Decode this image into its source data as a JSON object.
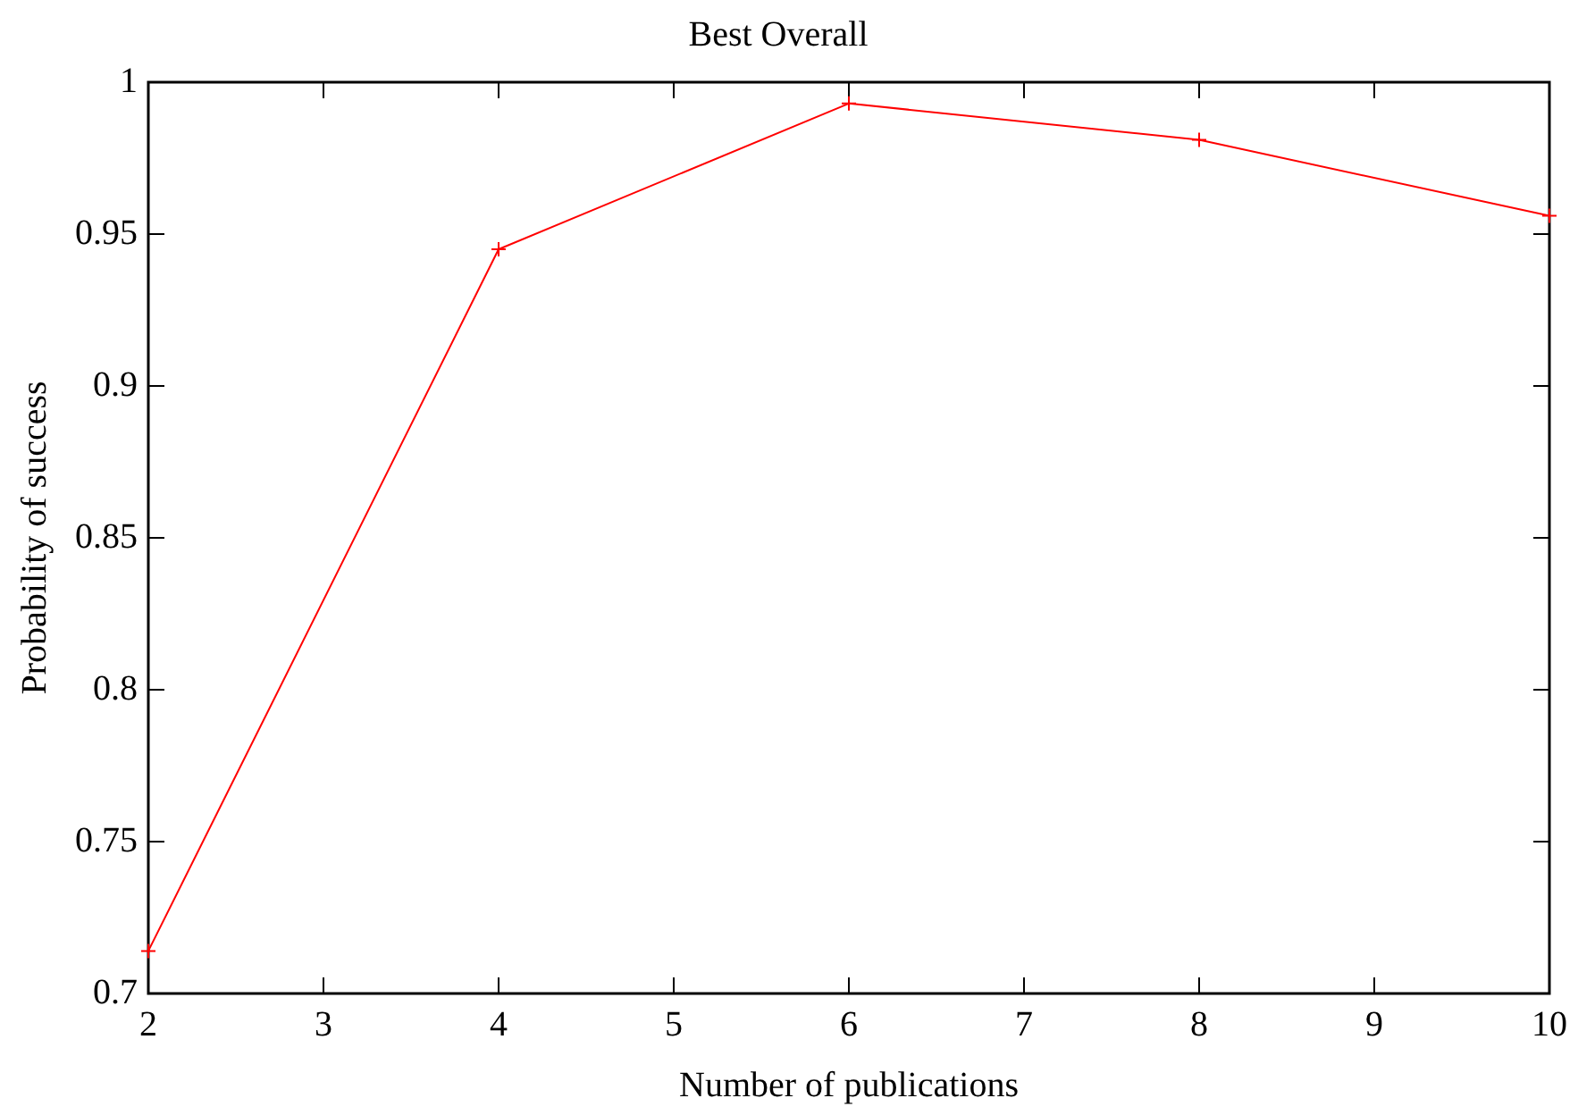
{
  "chart_data": {
    "type": "line",
    "title": "Best Overall",
    "xlabel": "Number of publications",
    "ylabel": "Probability of success",
    "x": [
      2,
      4,
      6,
      8,
      10
    ],
    "series": [
      {
        "color": "#ff0000",
        "values": [
          0.714,
          0.945,
          0.993,
          0.981,
          0.956
        ]
      }
    ],
    "xlim": [
      2,
      10
    ],
    "xticks": [
      2,
      3,
      4,
      5,
      6,
      7,
      8,
      9,
      10
    ],
    "ylim": [
      0.7,
      1
    ],
    "yticks": [
      0.7,
      0.75,
      0.8,
      0.85,
      0.9,
      0.95,
      1
    ],
    "grid": false,
    "legend": false,
    "marker": "cross",
    "line_style": "solid"
  }
}
